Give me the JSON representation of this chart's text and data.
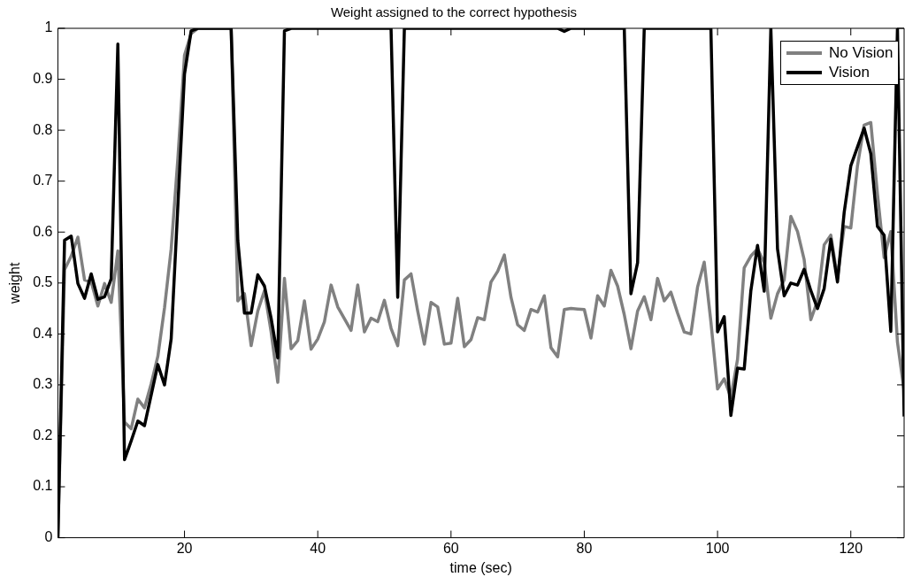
{
  "chart_data": {
    "type": "line",
    "title": "Weight assigned to the correct hypothesis",
    "xlabel": "time (sec)",
    "ylabel": "weight",
    "x": [
      1,
      2,
      3,
      4,
      5,
      6,
      7,
      8,
      9,
      10,
      11,
      12,
      13,
      14,
      15,
      16,
      17,
      18,
      19,
      20,
      21,
      22,
      23,
      24,
      25,
      26,
      27,
      28,
      29,
      30,
      31,
      32,
      33,
      34,
      35,
      36,
      37,
      38,
      39,
      40,
      41,
      42,
      43,
      44,
      45,
      46,
      47,
      48,
      49,
      50,
      51,
      52,
      53,
      54,
      55,
      56,
      57,
      58,
      59,
      60,
      61,
      62,
      63,
      64,
      65,
      66,
      67,
      68,
      69,
      70,
      71,
      72,
      73,
      74,
      75,
      76,
      77,
      78,
      79,
      80,
      81,
      82,
      83,
      84,
      85,
      86,
      87,
      88,
      89,
      90,
      91,
      92,
      93,
      94,
      95,
      96,
      97,
      98,
      99,
      100,
      101,
      102,
      103,
      104,
      105,
      106,
      107,
      108,
      109,
      110,
      111,
      112,
      113,
      114,
      115,
      116,
      117,
      118,
      119,
      120,
      121,
      122,
      123,
      124,
      125,
      126,
      127,
      128
    ],
    "series": [
      {
        "name": "No Vision",
        "color": "#808080",
        "values": [
          0,
          0.526,
          0.553,
          0.59,
          0.506,
          0.502,
          0.455,
          0.499,
          0.462,
          0.563,
          0.227,
          0.214,
          0.272,
          0.255,
          0.302,
          0.356,
          0.451,
          0.567,
          0.743,
          0.947,
          0.99,
          1,
          1,
          1,
          1,
          1,
          1,
          0.465,
          0.479,
          0.377,
          0.445,
          0.485,
          0.404,
          0.305,
          0.509,
          0.371,
          0.387,
          0.465,
          0.37,
          0.39,
          0.424,
          0.496,
          0.453,
          0.43,
          0.407,
          0.496,
          0.404,
          0.431,
          0.424,
          0.466,
          0.411,
          0.377,
          0.506,
          0.518,
          0.445,
          0.38,
          0.462,
          0.453,
          0.38,
          0.382,
          0.47,
          0.375,
          0.389,
          0.432,
          0.428,
          0.502,
          0.523,
          0.555,
          0.472,
          0.418,
          0.407,
          0.448,
          0.443,
          0.475,
          0.373,
          0.355,
          0.448,
          0.45,
          0.449,
          0.448,
          0.392,
          0.475,
          0.455,
          0.525,
          0.494,
          0.438,
          0.371,
          0.445,
          0.473,
          0.428,
          0.509,
          0.465,
          0.482,
          0.441,
          0.404,
          0.4,
          0.492,
          0.541,
          0.424,
          0.292,
          0.312,
          0.275,
          0.35,
          0.53,
          0.553,
          0.567,
          0.54,
          0.431,
          0.479,
          0.506,
          0.631,
          0.601,
          0.546,
          0.428,
          0.465,
          0.575,
          0.594,
          0.51,
          0.611,
          0.608,
          0.73,
          0.81,
          0.815,
          0.675,
          0.55,
          0.601,
          0.384,
          0.289
        ]
      },
      {
        "name": "Vision",
        "color": "#000000",
        "values": [
          0,
          0.584,
          0.592,
          0.499,
          0.47,
          0.518,
          0.468,
          0.473,
          0.508,
          0.969,
          0.153,
          0.19,
          0.229,
          0.22,
          0.28,
          0.34,
          0.3,
          0.39,
          0.65,
          0.91,
          0.995,
          1,
          1,
          1,
          1,
          1,
          1,
          0.584,
          0.441,
          0.441,
          0.516,
          0.494,
          0.431,
          0.353,
          0.995,
          1,
          1,
          1,
          1,
          1,
          1,
          1,
          1,
          1,
          1,
          1,
          1,
          1,
          1,
          1,
          1,
          0.472,
          1,
          1,
          1,
          1,
          1,
          1,
          1,
          1,
          1,
          1,
          1,
          1,
          1,
          1,
          1,
          1,
          1,
          1,
          1,
          1,
          1,
          1,
          1,
          1,
          0.994,
          1,
          1,
          1,
          1,
          1,
          1,
          1,
          1,
          1,
          0.479,
          0.54,
          1,
          1,
          1,
          1,
          1,
          1,
          1,
          1,
          1,
          1,
          1,
          0.404,
          0.434,
          0.24,
          0.333,
          0.331,
          0.485,
          0.574,
          0.484,
          1,
          0.567,
          0.475,
          0.5,
          0.496,
          0.527,
          0.485,
          0.45,
          0.489,
          0.586,
          0.502,
          0.638,
          0.73,
          0.767,
          0.804,
          0.754,
          0.611,
          0.594,
          0.405,
          1,
          0.238
        ]
      }
    ],
    "xlim": [
      1,
      128
    ],
    "xticks": [
      20,
      40,
      60,
      80,
      100,
      120
    ],
    "ylim": [
      0,
      1
    ],
    "yticks": [
      0,
      0.1,
      0.2,
      0.3,
      0.4,
      0.5,
      0.6,
      0.7,
      0.8,
      0.9,
      1
    ],
    "grid": false,
    "legend": "top right",
    "marker": "none",
    "line_style": "solid"
  }
}
